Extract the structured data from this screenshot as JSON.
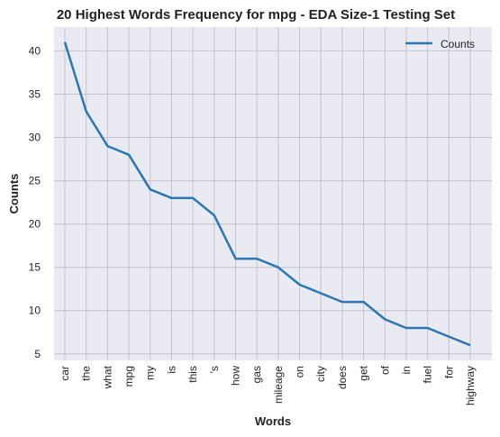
{
  "chart_data": {
    "type": "line",
    "title": "20 Highest Words Frequency for mpg - EDA Size-1 Testing Set",
    "xlabel": "Words",
    "ylabel": "Counts",
    "categories": [
      "car",
      "the",
      "what",
      "mpg",
      "my",
      "is",
      "this",
      "'s",
      "how",
      "gas",
      "mileage",
      "on",
      "city",
      "does",
      "get",
      "of",
      "in",
      "fuel",
      "for",
      "highway"
    ],
    "series": [
      {
        "name": "Counts",
        "values": [
          41,
          33,
          29,
          28,
          24,
          23,
          23,
          21,
          16,
          16,
          15,
          13,
          12,
          11,
          11,
          9,
          8,
          8,
          7,
          6
        ]
      }
    ],
    "ylim": [
      4.25,
      42.75
    ],
    "yticks": [
      5,
      10,
      15,
      20,
      25,
      30,
      35,
      40
    ],
    "grid": true,
    "legend_position": "top-right",
    "colors": {
      "line": "#2a77b4",
      "background": "#eaeaf2",
      "grid": "#c4c4c8"
    }
  }
}
